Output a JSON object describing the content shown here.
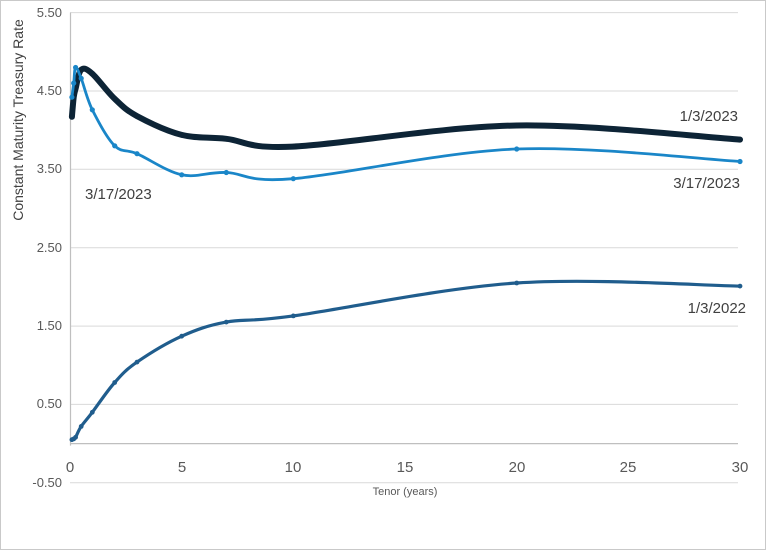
{
  "chart": {
    "y_axis_title": "Constant Maturity Treasury Rate",
    "x_axis_title": "Tenor (years)",
    "labels": {
      "right_1_3_2023": "1/3/2023",
      "right_3_17_2023": "3/17/2023",
      "left_3_17_2023": "3/17/2023",
      "bottom_1_3_2022": "1/3/2022"
    },
    "colors": {
      "gridline": "#d9d9d9",
      "axis_line": "#bfbfbf",
      "tick_label": "#595959",
      "annotation": "#404040",
      "series_1_3_2023": "#0d2436",
      "series_3_17_2023": "#1a86c8",
      "series_1_3_2022": "#205d8d"
    }
  },
  "chart_data": {
    "type": "line",
    "title": "",
    "xlabel": "Tenor (years)",
    "ylabel": "Constant Maturity Treasury Rate",
    "xlim": [
      0,
      30
    ],
    "ylim": [
      -0.5,
      5.5
    ],
    "grid": "horizontal",
    "legend_position": "none (direct line labels)",
    "x_ticks": [
      0,
      5,
      10,
      15,
      20,
      25,
      30
    ],
    "x_tick_labels": [
      "0",
      "5",
      "10",
      "15",
      "20",
      "25",
      "30"
    ],
    "y_ticks": [
      5.5,
      4.5,
      3.5,
      2.5,
      1.5,
      0.5,
      -0.5
    ],
    "y_tick_labels": [
      "5.50",
      "4.50",
      "3.50",
      "2.50",
      "1.50",
      "0.50",
      "-0.50"
    ],
    "x": [
      0.083,
      0.167,
      0.25,
      0.5,
      1,
      2,
      3,
      5,
      7,
      10,
      20,
      30
    ],
    "series": [
      {
        "name": "1/3/2023",
        "color": "#0d2436",
        "line_width": 6,
        "marker_radius": 2.8,
        "smooth": true,
        "values": [
          4.17,
          4.42,
          4.53,
          4.77,
          4.72,
          4.4,
          4.18,
          3.94,
          3.89,
          3.79,
          4.06,
          3.88
        ]
      },
      {
        "name": "3/17/2023",
        "color": "#1a86c8",
        "line_width": 2.8,
        "marker_radius": 2.6,
        "smooth": true,
        "values": [
          4.42,
          4.6,
          4.8,
          4.66,
          4.26,
          3.8,
          3.7,
          3.43,
          3.46,
          3.38,
          3.76,
          3.6
        ]
      },
      {
        "name": "1/3/2022",
        "color": "#205d8d",
        "line_width": 3.2,
        "marker_radius": 2.4,
        "smooth": true,
        "values": [
          0.05,
          0.06,
          0.08,
          0.22,
          0.4,
          0.78,
          1.04,
          1.37,
          1.55,
          1.63,
          2.05,
          2.01
        ]
      }
    ]
  }
}
